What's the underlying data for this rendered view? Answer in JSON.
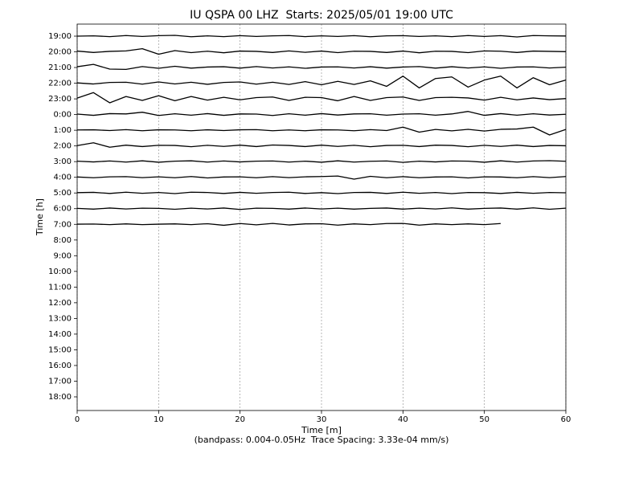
{
  "chart_data": {
    "type": "line",
    "title": "IU QSPA 00 LHZ  Starts: 2025/05/01 19:00 UTC",
    "x_label": "Time [m]",
    "y_label": "Time [h]",
    "footnote": "(bandpass: 0.004-0.05Hz  Trace Spacing: 3.33e-04 mm/s)",
    "xlim": [
      0,
      60
    ],
    "xticks": [
      0,
      10,
      20,
      30,
      40,
      50,
      60
    ],
    "grid": true,
    "color": "#000000",
    "categories": [
      "19:00",
      "20:00",
      "21:00",
      "22:00",
      "23:00",
      "0:00",
      "1:00",
      "2:00",
      "3:00",
      "4:00",
      "5:00",
      "6:00",
      "7:00",
      "8:00",
      "9:00",
      "10:00",
      "11:00",
      "12:00",
      "13:00",
      "14:00",
      "15:00",
      "16:00",
      "17:00",
      "18:00"
    ],
    "x": [
      0,
      2,
      4,
      6,
      8,
      10,
      12,
      14,
      16,
      18,
      20,
      22,
      24,
      26,
      28,
      30,
      32,
      34,
      36,
      38,
      40,
      42,
      44,
      46,
      48,
      50,
      52,
      54,
      56,
      58,
      60
    ],
    "series": [
      {
        "values": [
          0,
          0.02,
          -0.03,
          0.04,
          -0.02,
          0.03,
          0.05,
          -0.04,
          0.02,
          -0.03,
          0.03,
          -0.02,
          0.02,
          0.04,
          -0.03,
          0.02,
          -0.02,
          0.03,
          -0.04,
          0.02,
          0.03,
          -0.02,
          0.02,
          -0.03,
          0.04,
          -0.02,
          0.03,
          -0.05,
          0.04,
          0.02,
          0.01
        ]
      },
      {
        "values": [
          0.05,
          -0.04,
          0.03,
          0.06,
          0.2,
          -0.15,
          0.08,
          -0.05,
          0.04,
          -0.06,
          0.05,
          0.03,
          -0.04,
          0.06,
          -0.03,
          0.05,
          -0.05,
          0.04,
          0.03,
          -0.04,
          0.05,
          -0.06,
          0.04,
          0.03,
          -0.05,
          0.06,
          0.04,
          -0.04,
          0.05,
          0.03,
          0.01
        ]
      },
      {
        "values": [
          0.05,
          0.2,
          -0.1,
          -0.12,
          0.06,
          -0.05,
          0.08,
          -0.04,
          0.03,
          0.05,
          -0.04,
          0.06,
          -0.03,
          0.04,
          -0.05,
          0.03,
          0.04,
          -0.03,
          0.05,
          -0.04,
          0.03,
          0.06,
          -0.04,
          0.05,
          -0.03,
          0.04,
          -0.05,
          0.03,
          0.04,
          -0.03,
          0.02
        ]
      },
      {
        "values": [
          0.02,
          -0.05,
          0.05,
          0.06,
          -0.06,
          0.08,
          -0.05,
          0.06,
          -0.07,
          0.05,
          0.08,
          -0.06,
          0.06,
          -0.08,
          0.1,
          -0.1,
          0.12,
          -0.08,
          0.15,
          -0.2,
          0.45,
          -0.3,
          0.3,
          0.4,
          -0.25,
          0.2,
          0.45,
          -0.3,
          0.35,
          -0.1,
          0.2
        ]
      },
      {
        "values": [
          0.05,
          0.4,
          -0.25,
          0.15,
          -0.1,
          0.2,
          -0.12,
          0.15,
          -0.08,
          0.1,
          -0.06,
          0.08,
          0.12,
          -0.1,
          0.1,
          0.08,
          -0.12,
          0.15,
          -0.1,
          0.08,
          0.12,
          -0.1,
          0.08,
          0.1,
          0.06,
          -0.08,
          0.1,
          -0.06,
          0.06,
          -0.05,
          0.02
        ]
      },
      {
        "values": [
          0.03,
          -0.05,
          0.06,
          0.04,
          0.15,
          -0.06,
          0.05,
          -0.04,
          0.06,
          -0.05,
          0.04,
          0.03,
          -0.06,
          0.05,
          -0.04,
          0.06,
          -0.03,
          0.04,
          0.05,
          -0.04,
          0.03,
          0.05,
          -0.04,
          0.04,
          0.2,
          -0.05,
          0.06,
          -0.04,
          0.05,
          -0.03,
          0.02
        ]
      },
      {
        "values": [
          0.02,
          0.03,
          -0.02,
          0.04,
          -0.03,
          0.03,
          0.02,
          -0.03,
          0.03,
          -0.02,
          0.03,
          0.04,
          -0.03,
          0.02,
          -0.03,
          0.03,
          0.02,
          -0.03,
          0.04,
          -0.02,
          0.2,
          -0.12,
          0.05,
          -0.04,
          0.06,
          -0.05,
          0.06,
          0.08,
          0.2,
          -0.3,
          0.05
        ]
      },
      {
        "values": [
          0.02,
          0.2,
          -0.08,
          0.05,
          -0.04,
          0.04,
          0.03,
          -0.05,
          0.04,
          -0.03,
          0.05,
          -0.04,
          0.06,
          0.03,
          -0.04,
          0.05,
          -0.03,
          0.04,
          -0.05,
          0.03,
          0.04,
          -0.04,
          0.05,
          0.03,
          -0.05,
          0.04,
          -0.03,
          0.05,
          -0.04,
          0.03,
          0.01
        ]
      },
      {
        "values": [
          0.03,
          -0.02,
          0.04,
          -0.03,
          0.05,
          -0.04,
          0.03,
          0.05,
          -0.03,
          0.04,
          -0.02,
          0.03,
          0.04,
          -0.03,
          0.03,
          -0.04,
          0.05,
          -0.03,
          0.02,
          0.04,
          -0.05,
          0.03,
          -0.02,
          0.04,
          0.03,
          -0.04,
          0.05,
          -0.03,
          0.04,
          0.06,
          0.02
        ]
      },
      {
        "values": [
          0.02,
          -0.03,
          0.03,
          0.04,
          -0.02,
          0.03,
          -0.03,
          0.05,
          -0.04,
          0.02,
          0.03,
          -0.03,
          0.04,
          -0.02,
          0.03,
          0.05,
          0.08,
          -0.12,
          0.06,
          -0.03,
          0.04,
          -0.03,
          0.02,
          0.03,
          -0.04,
          0.03,
          0.02,
          -0.03,
          0.04,
          -0.02,
          0.05
        ]
      },
      {
        "values": [
          0.02,
          0.04,
          -0.03,
          0.05,
          -0.02,
          0.03,
          -0.04,
          0.05,
          0.03,
          -0.03,
          0.04,
          -0.02,
          0.03,
          0.05,
          -0.03,
          0.02,
          -0.04,
          0.03,
          0.04,
          -0.03,
          0.05,
          -0.02,
          0.03,
          -0.04,
          0.03,
          0.02,
          -0.03,
          0.04,
          -0.02,
          0.03,
          0.01
        ]
      },
      {
        "values": [
          0.02,
          -0.03,
          0.04,
          -0.02,
          0.03,
          0.02,
          -0.04,
          0.03,
          -0.02,
          0.04,
          -0.05,
          0.03,
          0.02,
          -0.03,
          0.04,
          -0.02,
          0.03,
          -0.03,
          0.02,
          0.04,
          -0.03,
          0.03,
          -0.02,
          0.05,
          -0.03,
          0.02,
          0.04,
          -0.03,
          0.05,
          -0.04,
          0.03
        ]
      },
      {
        "values": [
          0.01,
          0.02,
          -0.02,
          0.03,
          -0.02,
          0.01,
          0.03,
          -0.02,
          0.04,
          -0.06,
          0.05,
          -0.03,
          0.06,
          -0.04,
          0.03,
          0.04,
          -0.05,
          0.03,
          -0.02,
          0.05,
          0.06,
          -0.05,
          0.03,
          -0.02,
          0.03,
          -0.02,
          0.05,
          null,
          null,
          null,
          null
        ]
      }
    ]
  }
}
